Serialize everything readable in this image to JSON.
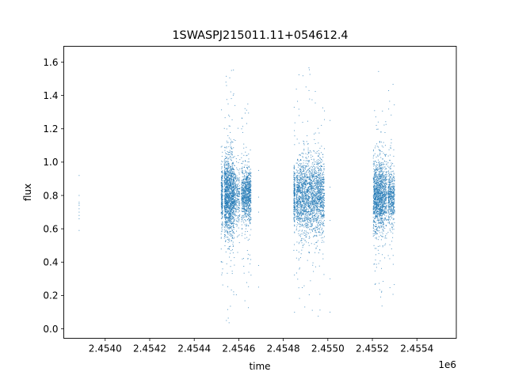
{
  "chart_data": {
    "type": "scatter",
    "title": "1SWASPJ215011.11+054612.4",
    "xlabel": "time",
    "ylabel": "flux",
    "x_offset_label": "1e6",
    "xlim": [
      2453814,
      2455577
    ],
    "ylim": [
      -0.057,
      1.695
    ],
    "x_ticks": [
      2454000,
      2454200,
      2454400,
      2454600,
      2454800,
      2455000,
      2455200,
      2455400
    ],
    "x_tick_labels": [
      "2.4540",
      "2.4542",
      "2.4544",
      "2.4546",
      "2.4548",
      "2.4550",
      "2.4552",
      "2.4554"
    ],
    "y_ticks": [
      0.0,
      0.2,
      0.4,
      0.6,
      0.8,
      1.0,
      1.2,
      1.4,
      1.6
    ],
    "y_tick_labels": [
      "0.0",
      "0.2",
      "0.4",
      "0.6",
      "0.8",
      "1.0",
      "1.2",
      "1.4",
      "1.6"
    ],
    "grid": false,
    "marker_color": "#1f77b4",
    "points_explicit": [
      [
        2453883,
        0.59
      ],
      [
        2453883,
        0.66
      ],
      [
        2453883,
        0.68
      ],
      [
        2453883,
        0.7
      ],
      [
        2453883,
        0.72
      ],
      [
        2453883,
        0.74
      ],
      [
        2453883,
        0.75
      ],
      [
        2453883,
        0.76
      ],
      [
        2453883,
        0.8
      ],
      [
        2453883,
        0.92
      ],
      [
        2454689,
        0.79
      ],
      [
        2454689,
        0.7
      ],
      [
        2454689,
        0.38
      ],
      [
        2454689,
        0.25
      ],
      [
        2454689,
        0.95
      ],
      [
        2455010,
        0.85
      ],
      [
        2455010,
        0.65
      ],
      [
        2455010,
        0.3
      ],
      [
        2455010,
        0.1
      ],
      [
        2455010,
        1.25
      ]
    ],
    "clusters": [
      {
        "t_start": 2454521,
        "t_end": 2454528,
        "flux_median": 0.8,
        "flux_spread": 0.12,
        "n": 250
      },
      {
        "t_start": 2454535,
        "t_end": 2454580,
        "flux_median": 0.8,
        "flux_spread": 0.17,
        "n": 1500
      },
      {
        "t_start": 2454580,
        "t_end": 2454605,
        "flux_median": 0.8,
        "flux_spread": 0.12,
        "n": 250
      },
      {
        "t_start": 2454612,
        "t_end": 2454655,
        "flux_median": 0.8,
        "flux_spread": 0.12,
        "n": 900
      },
      {
        "t_start": 2454847,
        "t_end": 2454853,
        "flux_median": 0.8,
        "flux_spread": 0.12,
        "n": 200
      },
      {
        "t_start": 2454858,
        "t_end": 2454985,
        "flux_median": 0.8,
        "flux_spread": 0.16,
        "n": 2200
      },
      {
        "t_start": 2455204,
        "t_end": 2455250,
        "flux_median": 0.8,
        "flux_spread": 0.15,
        "n": 1200
      },
      {
        "t_start": 2455250,
        "t_end": 2455265,
        "flux_median": 0.8,
        "flux_spread": 0.14,
        "n": 250
      },
      {
        "t_start": 2455270,
        "t_end": 2455300,
        "flux_median": 0.8,
        "flux_spread": 0.12,
        "n": 500
      }
    ]
  }
}
